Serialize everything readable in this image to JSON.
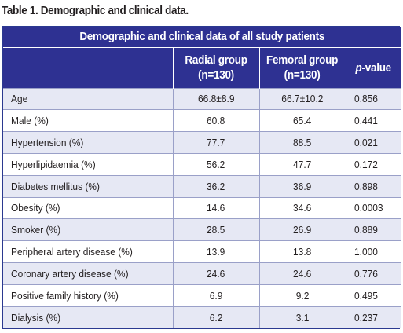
{
  "caption": "Table 1. Demographic and clinical data.",
  "table": {
    "banner": "Demographic and clinical data of all study patients",
    "headers": {
      "radial_line1": "Radial group",
      "radial_line2": "(n=130)",
      "femoral_line1": "Femoral group",
      "femoral_line2": "(n=130)",
      "pvalue_italic": "p",
      "pvalue_rest": "-value"
    },
    "rows": [
      {
        "label": "Age",
        "radial": "66.8±8.9",
        "femoral": "66.7±10.2",
        "p": "0.856"
      },
      {
        "label": "Male (%)",
        "radial": "60.8",
        "femoral": "65.4",
        "p": "0.441"
      },
      {
        "label": "Hypertension (%)",
        "radial": "77.7",
        "femoral": "88.5",
        "p": "0.021"
      },
      {
        "label": "Hyperlipidaemia (%)",
        "radial": "56.2",
        "femoral": "47.7",
        "p": "0.172"
      },
      {
        "label": "Diabetes mellitus (%)",
        "radial": "36.2",
        "femoral": "36.9",
        "p": "0.898"
      },
      {
        "label": "Obesity (%)",
        "radial": "14.6",
        "femoral": "34.6",
        "p": "0.0003"
      },
      {
        "label": "Smoker (%)",
        "radial": "28.5",
        "femoral": "26.9",
        "p": "0.889"
      },
      {
        "label": "Peripheral artery disease (%)",
        "radial": "13.9",
        "femoral": "13.8",
        "p": "1.000"
      },
      {
        "label": "Coronary artery disease (%)",
        "radial": "24.6",
        "femoral": "24.6",
        "p": "0.776"
      },
      {
        "label": "Positive family history (%)",
        "radial": "6.9",
        "femoral": "9.2",
        "p": "0.495"
      },
      {
        "label": "Dialysis (%)",
        "radial": "6.2",
        "femoral": "3.1",
        "p": "0.237"
      }
    ]
  },
  "colors": {
    "header_bg": "#2e3192",
    "stripe_bg": "#e6e8f4",
    "text": "#231f20"
  }
}
